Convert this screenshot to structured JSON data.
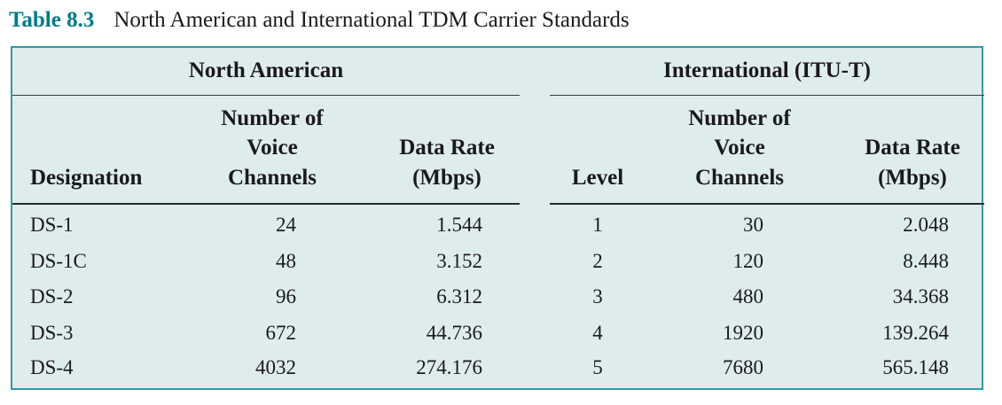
{
  "caption": {
    "number": "Table 8.3",
    "title": "North American and International TDM Carrier Standards"
  },
  "groups": {
    "left": "North American",
    "right": "International (ITU-T)"
  },
  "columns": {
    "designation": "Designation",
    "voice_line1": "Number of",
    "voice_line2": "Voice",
    "voice_line3": "Channels",
    "rate_line1": "Data Rate",
    "rate_line2": "(Mbps)",
    "level": "Level"
  },
  "rows": [
    {
      "designation": "DS-1",
      "na_channels": "24",
      "na_rate": "1.544",
      "level": "1",
      "itu_channels": "30",
      "itu_rate": "2.048"
    },
    {
      "designation": "DS-1C",
      "na_channels": "48",
      "na_rate": "3.152",
      "level": "2",
      "itu_channels": "120",
      "itu_rate": "8.448"
    },
    {
      "designation": "DS-2",
      "na_channels": "96",
      "na_rate": "6.312",
      "level": "3",
      "itu_channels": "480",
      "itu_rate": "34.368"
    },
    {
      "designation": "DS-3",
      "na_channels": "672",
      "na_rate": "44.736",
      "level": "4",
      "itu_channels": "1920",
      "itu_rate": "139.264"
    },
    {
      "designation": "DS-4",
      "na_channels": "4032",
      "na_rate": "274.176",
      "level": "5",
      "itu_channels": "7680",
      "itu_rate": "565.148"
    }
  ],
  "colors": {
    "accent": "#007a8a",
    "panel_background": "#dfecee",
    "panel_border": "#2f9aa6"
  }
}
